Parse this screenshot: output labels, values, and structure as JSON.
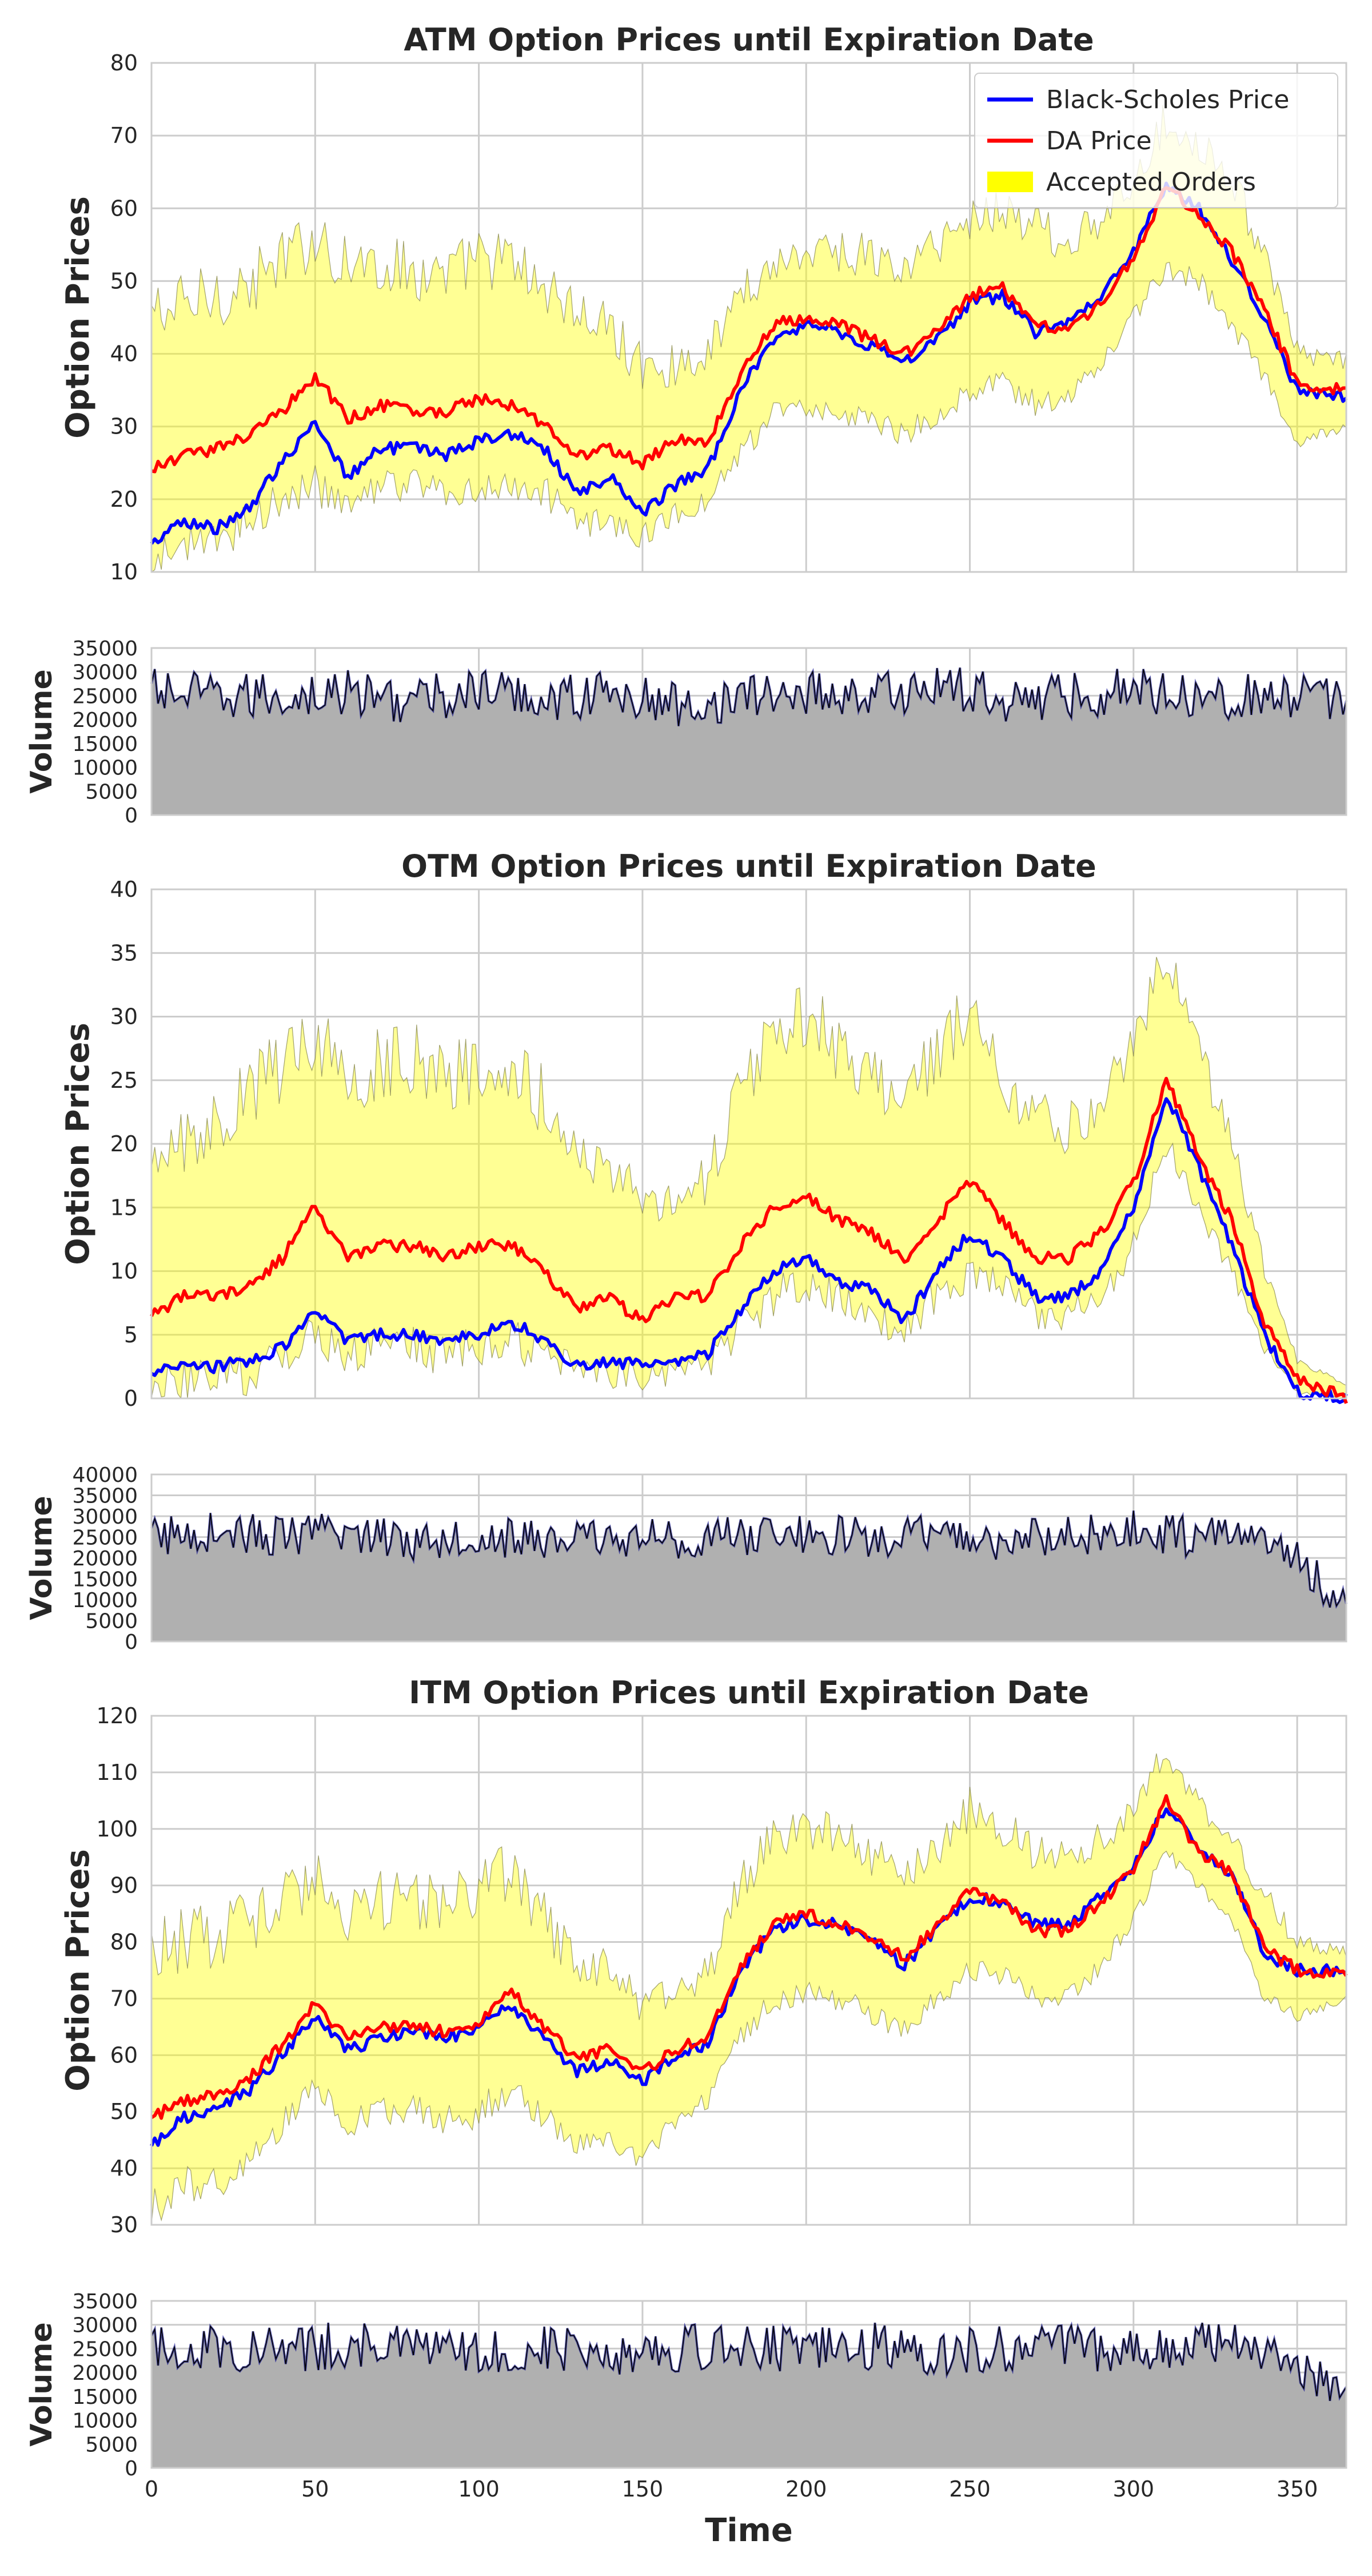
{
  "figure": {
    "xlabel": "Time",
    "legend": [
      "Black-Scholes Price",
      "DA Price",
      "Accepted Orders"
    ],
    "colors": {
      "bs": "#0000ff",
      "da": "#ff0000",
      "band": "#ffff00",
      "volume_fill": "#b0b0b0",
      "grid": "#cccccc"
    }
  },
  "chart_data": [
    {
      "type": "line",
      "title": "ATM Option Prices until Expiration Date",
      "xlabel": "",
      "ylabel": "Option Prices",
      "xlim": [
        0,
        365
      ],
      "ylim": [
        10,
        80
      ],
      "yticks": [
        10,
        20,
        30,
        40,
        50,
        60,
        70,
        80
      ],
      "xticks": [
        0,
        50,
        100,
        150,
        200,
        250,
        300,
        350
      ],
      "grid": true,
      "legend_position": "top-right",
      "x": [
        0,
        10,
        20,
        30,
        40,
        50,
        60,
        70,
        80,
        90,
        100,
        110,
        120,
        130,
        140,
        150,
        160,
        170,
        180,
        190,
        200,
        210,
        220,
        230,
        240,
        250,
        260,
        270,
        280,
        290,
        300,
        310,
        320,
        330,
        340,
        350,
        365
      ],
      "series": [
        {
          "name": "Black-Scholes Price",
          "values": [
            14,
            17,
            16,
            19,
            25,
            31,
            23,
            27,
            27,
            26,
            28,
            29,
            27,
            21,
            23,
            18,
            22,
            24,
            35,
            42,
            44,
            43,
            41,
            39,
            42,
            47,
            48,
            43,
            44,
            48,
            54,
            63,
            60,
            53,
            45,
            35,
            34
          ]
        },
        {
          "name": "DA Price",
          "values": [
            24,
            26,
            27,
            29,
            32,
            37,
            31,
            33,
            32,
            32,
            34,
            33,
            30,
            26,
            27,
            25,
            28,
            28,
            37,
            44,
            45,
            44,
            42,
            40,
            43,
            48,
            49,
            44,
            43,
            47,
            53,
            63,
            59,
            54,
            46,
            36,
            35
          ]
        },
        {
          "name": "Accepted Orders",
          "type": "band",
          "lower": [
            11,
            14,
            14,
            17,
            20,
            22,
            18,
            22,
            22,
            21,
            22,
            22,
            21,
            17,
            17,
            15,
            18,
            20,
            26,
            32,
            33,
            32,
            31,
            29,
            32,
            35,
            36,
            33,
            34,
            39,
            45,
            52,
            50,
            44,
            37,
            28,
            30
          ],
          "upper": [
            45,
            46,
            48,
            49,
            52,
            56,
            52,
            52,
            51,
            50,
            53,
            52,
            49,
            45,
            43,
            38,
            38,
            40,
            48,
            52,
            54,
            54,
            53,
            51,
            55,
            58,
            60,
            57,
            55,
            58,
            63,
            72,
            69,
            64,
            53,
            40,
            39
          ]
        }
      ]
    },
    {
      "type": "area",
      "title": "",
      "xlabel": "",
      "ylabel": "Volume",
      "xlim": [
        0,
        365
      ],
      "ylim": [
        0,
        35000
      ],
      "yticks": [
        0,
        5000,
        10000,
        15000,
        20000,
        25000,
        30000,
        35000
      ],
      "xticks": [
        0,
        50,
        100,
        150,
        200,
        250,
        300,
        350
      ],
      "grid": true,
      "x": [
        0,
        20,
        40,
        60,
        80,
        100,
        120,
        140,
        160,
        180,
        200,
        220,
        240,
        260,
        280,
        300,
        320,
        340,
        365
      ],
      "series": [
        {
          "name": "",
          "values": [
            26000,
            24500,
            25000,
            25500,
            24000,
            26000,
            24500,
            25500,
            23000,
            24500,
            26000,
            25000,
            27000,
            24500,
            25000,
            26500,
            25500,
            24500,
            24000
          ]
        }
      ]
    },
    {
      "type": "line",
      "title": "OTM Option Prices until Expiration Date",
      "xlabel": "",
      "ylabel": "Option Prices",
      "xlim": [
        0,
        365
      ],
      "ylim": [
        0,
        40
      ],
      "yticks": [
        0,
        5,
        10,
        15,
        20,
        25,
        30,
        35,
        40
      ],
      "xticks": [
        0,
        50,
        100,
        150,
        200,
        250,
        300,
        350
      ],
      "grid": true,
      "x": [
        0,
        10,
        20,
        30,
        40,
        50,
        60,
        70,
        80,
        90,
        100,
        110,
        120,
        130,
        140,
        150,
        160,
        170,
        180,
        190,
        200,
        210,
        220,
        230,
        240,
        250,
        260,
        270,
        280,
        290,
        300,
        310,
        320,
        330,
        340,
        350,
        365
      ],
      "series": [
        {
          "name": "Black-Scholes Price",
          "values": [
            2,
            2.5,
            2.5,
            3,
            4,
            7,
            4.5,
            5,
            5,
            4.5,
            5,
            6,
            4.5,
            2.5,
            3,
            2.5,
            3,
            3.5,
            7,
            10,
            11,
            9,
            8.5,
            6,
            10,
            13,
            11,
            8,
            8,
            10,
            15,
            24,
            18,
            12,
            5,
            0.5,
            0
          ]
        },
        {
          "name": "DA Price",
          "values": [
            6.5,
            8,
            8,
            9,
            11,
            15,
            11,
            12,
            12,
            11,
            12,
            12,
            10,
            7,
            8,
            6,
            8,
            8,
            12,
            15,
            16,
            14,
            13,
            11,
            14,
            17,
            14,
            11,
            11,
            13,
            17,
            25,
            19,
            14,
            6,
            1.5,
            0
          ]
        },
        {
          "name": "Accepted Orders",
          "type": "band",
          "lower": [
            1,
            1.5,
            1.5,
            2,
            3,
            5,
            3.5,
            4,
            4,
            3.5,
            4,
            4.5,
            3.5,
            2,
            2,
            1.5,
            2,
            2.5,
            5.5,
            8,
            9,
            8,
            7,
            5,
            8,
            10,
            9,
            6.5,
            6.5,
            8,
            12,
            20,
            15,
            10,
            4,
            0.5,
            0
          ],
          "upper": [
            17,
            20,
            22,
            24,
            26,
            29,
            25,
            26,
            26,
            25,
            26,
            26,
            23,
            19,
            18,
            15,
            16,
            17,
            24,
            28,
            30,
            27,
            25,
            23,
            27,
            30,
            25,
            22,
            21,
            23,
            27,
            35,
            27,
            20,
            10,
            3,
            1
          ]
        }
      ]
    },
    {
      "type": "area",
      "title": "",
      "xlabel": "",
      "ylabel": "Volume",
      "xlim": [
        0,
        365
      ],
      "ylim": [
        0,
        40000
      ],
      "yticks": [
        0,
        5000,
        10000,
        15000,
        20000,
        25000,
        30000,
        35000,
        40000
      ],
      "xticks": [
        0,
        50,
        100,
        150,
        200,
        250,
        300,
        350
      ],
      "grid": true,
      "x": [
        0,
        20,
        40,
        60,
        80,
        100,
        120,
        140,
        160,
        180,
        200,
        220,
        240,
        260,
        280,
        300,
        320,
        340,
        365
      ],
      "series": [
        {
          "name": "",
          "values": [
            25000,
            26500,
            25000,
            26000,
            24500,
            25500,
            24000,
            25000,
            24500,
            25000,
            26000,
            24500,
            25500,
            24000,
            25000,
            26500,
            25000,
            26000,
            9000
          ]
        }
      ]
    },
    {
      "type": "line",
      "title": "ITM Option Prices until Expiration Date",
      "xlabel": "",
      "ylabel": "Option Prices",
      "xlim": [
        0,
        365
      ],
      "ylim": [
        30,
        120
      ],
      "yticks": [
        30,
        40,
        50,
        60,
        70,
        80,
        90,
        100,
        110,
        120
      ],
      "xticks": [
        0,
        50,
        100,
        150,
        200,
        250,
        300,
        350
      ],
      "grid": true,
      "x": [
        0,
        10,
        20,
        30,
        40,
        50,
        60,
        70,
        80,
        90,
        100,
        110,
        120,
        130,
        140,
        150,
        160,
        170,
        180,
        190,
        200,
        210,
        220,
        230,
        240,
        250,
        260,
        270,
        280,
        290,
        300,
        310,
        320,
        330,
        340,
        350,
        365
      ],
      "series": [
        {
          "name": "Black-Scholes Price",
          "values": [
            44,
            49,
            50,
            54,
            60,
            67,
            61,
            63,
            64,
            63,
            65,
            69,
            63,
            57,
            59,
            55,
            60,
            62,
            75,
            82,
            84,
            83,
            80,
            76,
            82,
            88,
            87,
            83,
            83,
            88,
            93,
            104,
            97,
            92,
            78,
            75,
            75
          ]
        },
        {
          "name": "DA Price",
          "values": [
            49,
            52,
            53,
            56,
            62,
            69,
            63,
            65,
            65,
            64,
            66,
            71,
            65,
            59,
            61,
            57,
            61,
            63,
            76,
            83,
            85,
            83,
            81,
            77,
            83,
            89,
            87,
            82,
            82,
            87,
            93,
            105,
            96,
            92,
            79,
            75,
            74
          ]
        },
        {
          "name": "Accepted Orders",
          "type": "band",
          "lower": [
            33,
            37,
            38,
            42,
            48,
            53,
            48,
            50,
            50,
            49,
            50,
            53,
            49,
            44,
            45,
            42,
            48,
            52,
            63,
            70,
            71,
            70,
            67,
            64,
            70,
            75,
            74,
            70,
            70,
            76,
            84,
            96,
            90,
            84,
            70,
            67,
            70
          ],
          "upper": [
            78,
            80,
            81,
            83,
            86,
            92,
            85,
            87,
            87,
            86,
            90,
            92,
            84,
            75,
            74,
            68,
            72,
            74,
            90,
            98,
            100,
            98,
            95,
            91,
            96,
            103,
            100,
            95,
            94,
            98,
            103,
            114,
            104,
            98,
            88,
            80,
            78
          ]
        }
      ]
    },
    {
      "type": "area",
      "title": "",
      "xlabel": "Time",
      "ylabel": "Volume",
      "xlim": [
        0,
        365
      ],
      "ylim": [
        0,
        35000
      ],
      "yticks": [
        0,
        5000,
        10000,
        15000,
        20000,
        25000,
        30000,
        35000
      ],
      "xticks": [
        0,
        50,
        100,
        150,
        200,
        250,
        300,
        350
      ],
      "grid": true,
      "x": [
        0,
        20,
        40,
        60,
        80,
        100,
        120,
        140,
        160,
        180,
        200,
        220,
        240,
        260,
        280,
        300,
        320,
        340,
        365
      ],
      "series": [
        {
          "name": "",
          "values": [
            25000,
            25500,
            24500,
            26000,
            25000,
            24000,
            25500,
            24500,
            25000,
            26000,
            24500,
            25500,
            24000,
            25000,
            25500,
            24500,
            26000,
            25000,
            17000
          ]
        }
      ]
    }
  ]
}
